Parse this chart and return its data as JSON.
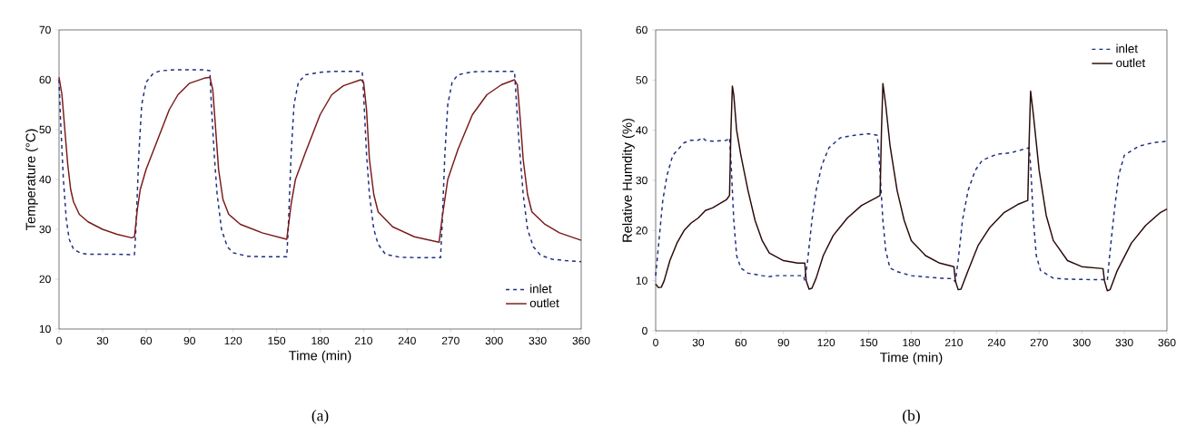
{
  "chart_data": [
    {
      "type": "line",
      "xlabel": "Time (min)",
      "ylabel": "Temperature (°C)",
      "xlim": [
        0,
        360
      ],
      "ylim": [
        10,
        70
      ],
      "xticks": [
        0,
        30,
        60,
        90,
        120,
        150,
        180,
        210,
        240,
        270,
        300,
        330,
        360
      ],
      "yticks": [
        10,
        20,
        30,
        40,
        50,
        60,
        70
      ],
      "grid": false,
      "legend": "bottom right",
      "marker": "none",
      "annotations": [
        "(a)"
      ],
      "series": [
        {
          "name": "inlet",
          "color": "#1f2d80",
          "line_style": "dashed",
          "x": [
            0,
            1,
            3,
            5,
            7,
            10,
            15,
            20,
            30,
            40,
            52,
            53,
            55,
            57,
            60,
            65,
            70,
            80,
            90,
            100,
            104,
            105,
            107,
            109,
            112,
            116,
            120,
            130,
            140,
            150,
            157,
            158,
            160,
            162,
            165,
            170,
            180,
            190,
            200,
            209,
            210,
            212,
            214,
            217,
            220,
            225,
            235,
            250,
            263,
            264,
            266,
            268,
            271,
            275,
            285,
            300,
            314,
            315,
            317,
            320,
            323,
            327,
            332,
            340,
            350,
            360
          ],
          "values": [
            60,
            52,
            40,
            32,
            28,
            26,
            25.2,
            25,
            25,
            25,
            24.9,
            30,
            45,
            55,
            59.5,
            61.3,
            61.8,
            62,
            62,
            62,
            61.8,
            55,
            45,
            37,
            30,
            26.5,
            25.3,
            24.6,
            24.5,
            24.5,
            24.5,
            30,
            45,
            55,
            59.5,
            61,
            61.5,
            61.7,
            61.7,
            61.7,
            57,
            45,
            37,
            30,
            27,
            25,
            24.4,
            24.3,
            24.3,
            30,
            45,
            55,
            59.5,
            61,
            61.6,
            61.7,
            61.7,
            57,
            48,
            37,
            30,
            26.5,
            24.8,
            24,
            23.7,
            23.5
          ]
        },
        {
          "name": "outlet",
          "color": "#7a1a1a",
          "line_style": "solid",
          "x": [
            0,
            2,
            4,
            6,
            8,
            10,
            14,
            20,
            30,
            40,
            50,
            52,
            54,
            56,
            60,
            70,
            76,
            82,
            90,
            100,
            104,
            106,
            108,
            110,
            113,
            117,
            125,
            140,
            157,
            160,
            163,
            170,
            180,
            188,
            196,
            208,
            210,
            212,
            214,
            217,
            220,
            230,
            245,
            262,
            264,
            268,
            275,
            285,
            295,
            305,
            314,
            316,
            318,
            320,
            323,
            326,
            335,
            345,
            360
          ],
          "values": [
            60.5,
            57,
            50,
            43,
            38,
            35.5,
            33,
            31.5,
            30,
            29,
            28.3,
            28.5,
            34,
            38,
            42,
            49.5,
            54,
            57,
            59.3,
            60.3,
            60.5,
            58,
            50,
            42,
            36,
            33,
            31,
            29.3,
            28,
            35,
            40,
            45.5,
            53,
            57,
            58.8,
            60,
            59.5,
            54,
            44,
            37,
            33.5,
            30.5,
            28.5,
            27.4,
            32,
            40,
            46,
            53,
            57,
            59,
            60,
            59,
            52,
            44,
            37,
            33.5,
            31,
            29.3,
            27.8
          ]
        }
      ]
    },
    {
      "type": "line",
      "xlabel": "Time (min)",
      "ylabel": "Relative Humdity (%)",
      "xlim": [
        0,
        360
      ],
      "ylim": [
        0,
        60
      ],
      "xticks": [
        0,
        30,
        60,
        90,
        120,
        150,
        180,
        210,
        240,
        270,
        300,
        330,
        360
      ],
      "yticks": [
        0,
        10,
        20,
        30,
        40,
        50,
        60
      ],
      "grid": false,
      "legend": "top right",
      "marker": "none",
      "annotations": [
        "(b)"
      ],
      "series": [
        {
          "name": "inlet",
          "color": "#1f2d80",
          "line_style": "dashed",
          "x": [
            0,
            3,
            5,
            8,
            12,
            20,
            25,
            30,
            33,
            35,
            40,
            50,
            52,
            53,
            55,
            57,
            60,
            65,
            75,
            80,
            85,
            100,
            104,
            105,
            107,
            110,
            113,
            117,
            122,
            130,
            140,
            150,
            156,
            157,
            160,
            162,
            165,
            170,
            180,
            200,
            209,
            211,
            213,
            216,
            220,
            225,
            230,
            240,
            250,
            263,
            264,
            266,
            268,
            271,
            280,
            290,
            310,
            316,
            318,
            320,
            323,
            326,
            330,
            340,
            350,
            360
          ],
          "values": [
            11,
            20,
            26,
            31,
            35,
            37.5,
            38,
            38,
            38.5,
            38,
            37.8,
            38,
            38.5,
            34,
            22,
            15,
            12.5,
            11.5,
            11,
            10.8,
            11,
            11,
            11,
            10,
            14,
            22,
            28,
            33,
            36.5,
            38.5,
            39,
            39.3,
            39,
            36,
            22,
            16,
            12.5,
            11.8,
            11,
            10.5,
            10.4,
            9.8,
            14,
            22,
            28,
            32,
            34,
            35.2,
            35.5,
            36.5,
            33,
            22,
            15,
            12,
            10.5,
            10.3,
            10.2,
            10.2,
            10,
            16,
            24,
            31,
            35,
            36.8,
            37.5,
            37.8
          ]
        },
        {
          "name": "outlet",
          "color": "#2b0a0a",
          "line_style": "solid",
          "x": [
            0,
            2,
            4,
            6,
            10,
            15,
            20,
            25,
            30,
            35,
            40,
            50,
            52,
            53,
            54,
            55,
            57,
            60,
            65,
            70,
            75,
            80,
            90,
            100,
            105,
            106,
            108,
            110,
            113,
            118,
            125,
            135,
            145,
            155,
            158,
            159,
            160,
            162,
            165,
            170,
            175,
            180,
            190,
            200,
            210,
            211,
            213,
            215,
            220,
            227,
            235,
            245,
            255,
            262,
            263,
            264,
            266,
            270,
            275,
            280,
            290,
            300,
            315,
            316,
            318,
            320,
            325,
            335,
            345,
            355,
            360
          ],
          "values": [
            9.3,
            8.6,
            8.7,
            10,
            14,
            17.5,
            20,
            21.5,
            22.5,
            24,
            24.5,
            26.2,
            27,
            40,
            48.8,
            47,
            40,
            35,
            28,
            22,
            18,
            15.5,
            14,
            13.5,
            13.5,
            10,
            8.3,
            8.5,
            10.5,
            15,
            19,
            22.5,
            25,
            26.5,
            27,
            40,
            49.3,
            45,
            37,
            28,
            22,
            18,
            15,
            13.5,
            12.8,
            10,
            8.2,
            8.3,
            12,
            17,
            20.5,
            23.5,
            25.2,
            26,
            38,
            47.8,
            43,
            32,
            23,
            18,
            14,
            12.8,
            12.4,
            10,
            8,
            8.2,
            12,
            17.5,
            21,
            23.5,
            24.3
          ]
        }
      ]
    }
  ]
}
